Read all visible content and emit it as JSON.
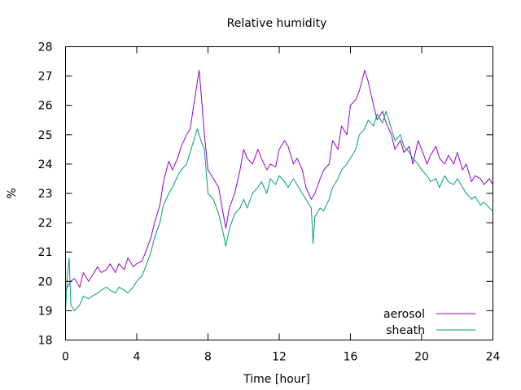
{
  "chart_data": {
    "type": "line",
    "title": "Relative humidity",
    "xlabel": "Time [hour]",
    "ylabel": "%",
    "xlim": [
      0,
      24
    ],
    "ylim": [
      18,
      28
    ],
    "xticks": [
      0,
      4,
      8,
      12,
      16,
      20,
      24
    ],
    "yticks": [
      18,
      19,
      20,
      21,
      22,
      23,
      24,
      25,
      26,
      27,
      28
    ],
    "grid": false,
    "legend": "bottom-right",
    "series": [
      {
        "name": "aerosol",
        "color": "#9400d3",
        "x": [
          0,
          0.3,
          0.5,
          0.8,
          1,
          1.3,
          1.5,
          1.8,
          2,
          2.3,
          2.5,
          2.8,
          3,
          3.3,
          3.5,
          3.8,
          4,
          4.3,
          4.5,
          4.8,
          5,
          5.3,
          5.5,
          5.8,
          6,
          6.3,
          6.5,
          6.8,
          7,
          7.2,
          7.4,
          7.5,
          7.6,
          7.8,
          8,
          8.3,
          8.6,
          8.8,
          9,
          9.2,
          9.5,
          9.8,
          10,
          10.2,
          10.5,
          10.8,
          11,
          11.3,
          11.5,
          11.8,
          12,
          12.3,
          12.5,
          12.8,
          13,
          13.3,
          13.5,
          13.8,
          14,
          14.3,
          14.5,
          14.8,
          15,
          15.3,
          15.5,
          15.8,
          16,
          16.3,
          16.5,
          16.8,
          17,
          17.3,
          17.5,
          17.8,
          18,
          18.3,
          18.5,
          18.8,
          19,
          19.3,
          19.5,
          19.8,
          20,
          20.3,
          20.5,
          20.8,
          21,
          21.3,
          21.5,
          21.8,
          22,
          22.3,
          22.5,
          22.8,
          23,
          23.3,
          23.5,
          23.8,
          24
        ],
        "values": [
          19.7,
          20.0,
          20.1,
          19.8,
          20.3,
          20.0,
          20.2,
          20.5,
          20.3,
          20.4,
          20.6,
          20.3,
          20.6,
          20.4,
          20.8,
          20.5,
          20.6,
          20.7,
          21.0,
          21.5,
          22.0,
          22.6,
          23.4,
          24.1,
          23.8,
          24.2,
          24.6,
          25.0,
          25.2,
          26.0,
          26.8,
          27.2,
          26.5,
          25.0,
          23.8,
          23.5,
          23.2,
          22.5,
          21.8,
          22.5,
          23.0,
          23.8,
          24.5,
          24.2,
          24.0,
          24.5,
          24.2,
          23.8,
          24.0,
          23.9,
          24.5,
          24.8,
          24.6,
          24.0,
          24.2,
          23.8,
          23.2,
          22.8,
          23.0,
          23.5,
          23.8,
          24.0,
          24.8,
          24.5,
          25.3,
          25.0,
          26.0,
          26.2,
          26.5,
          27.2,
          26.8,
          26.0,
          25.5,
          25.8,
          25.4,
          25.0,
          24.5,
          24.8,
          24.4,
          24.6,
          24.0,
          24.8,
          24.5,
          24.0,
          24.3,
          24.6,
          24.2,
          24.0,
          24.3,
          24.0,
          24.4,
          23.8,
          24.0,
          23.4,
          23.6,
          23.5,
          23.3,
          23.5,
          23.3
        ]
      },
      {
        "name": "sheath",
        "color": "#009e73",
        "x": [
          0,
          0.1,
          0.2,
          0.3,
          0.5,
          0.8,
          1,
          1.3,
          1.5,
          1.8,
          2,
          2.3,
          2.5,
          2.8,
          3,
          3.3,
          3.5,
          3.8,
          4,
          4.3,
          4.5,
          4.8,
          5,
          5.3,
          5.5,
          5.8,
          6,
          6.3,
          6.5,
          6.8,
          7,
          7.2,
          7.4,
          7.6,
          7.8,
          8,
          8.3,
          8.6,
          8.8,
          9,
          9.2,
          9.5,
          9.8,
          10,
          10.2,
          10.5,
          10.8,
          11,
          11.3,
          11.5,
          11.8,
          12,
          12.3,
          12.5,
          12.8,
          13,
          13.3,
          13.5,
          13.8,
          13.9,
          14,
          14.3,
          14.5,
          14.8,
          15,
          15.3,
          15.5,
          15.8,
          16,
          16.3,
          16.5,
          16.8,
          17,
          17.3,
          17.5,
          17.8,
          18,
          18.3,
          18.5,
          18.8,
          19,
          19.3,
          19.5,
          19.8,
          20,
          20.3,
          20.5,
          20.8,
          21,
          21.3,
          21.5,
          21.8,
          22,
          22.3,
          22.5,
          22.8,
          23,
          23.3,
          23.5,
          23.8,
          24
        ],
        "values": [
          19.0,
          20.2,
          20.8,
          19.2,
          19.0,
          19.2,
          19.5,
          19.4,
          19.5,
          19.6,
          19.7,
          19.8,
          19.7,
          19.6,
          19.8,
          19.7,
          19.6,
          19.8,
          20.0,
          20.2,
          20.5,
          21.0,
          21.5,
          22.0,
          22.6,
          23.0,
          23.2,
          23.6,
          23.8,
          24.0,
          24.4,
          24.8,
          25.2,
          24.8,
          24.5,
          23.0,
          22.8,
          22.3,
          21.8,
          21.2,
          21.8,
          22.3,
          22.5,
          22.8,
          22.5,
          23.0,
          23.2,
          23.4,
          23.0,
          23.5,
          23.3,
          23.6,
          23.4,
          23.2,
          23.5,
          23.3,
          23.0,
          22.8,
          22.5,
          21.3,
          22.2,
          22.5,
          22.4,
          22.8,
          23.2,
          23.5,
          23.8,
          24.0,
          24.2,
          24.5,
          25.0,
          25.2,
          25.5,
          25.3,
          25.7,
          25.4,
          25.8,
          25.2,
          24.8,
          25.0,
          24.6,
          24.4,
          24.2,
          24.0,
          23.8,
          23.6,
          23.4,
          23.5,
          23.2,
          23.6,
          23.4,
          23.3,
          23.5,
          23.2,
          23.0,
          22.8,
          22.9,
          22.6,
          22.7,
          22.5,
          22.4
        ]
      }
    ]
  }
}
